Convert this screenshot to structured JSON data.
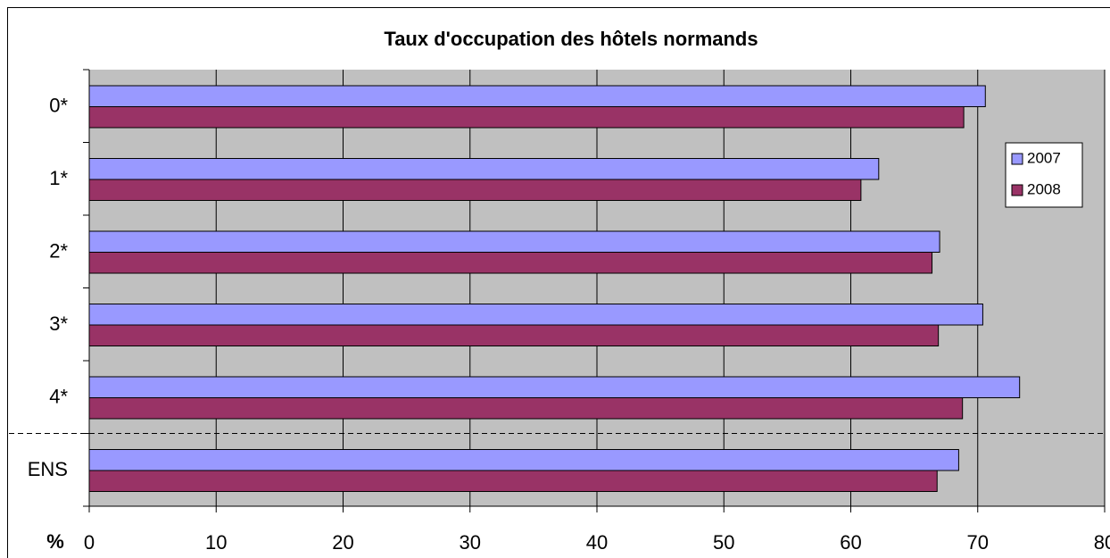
{
  "chart_data": {
    "type": "bar",
    "orientation": "horizontal",
    "title": "Taux d'occupation des hôtels normands",
    "categories": [
      "0*",
      "1*",
      "2*",
      "3*",
      "4*",
      "ENS"
    ],
    "series": [
      {
        "name": "2007",
        "color": "#9999ff",
        "values": [
          70.6,
          62.2,
          67.0,
          70.4,
          73.3,
          68.5
        ]
      },
      {
        "name": "2008",
        "color": "#993366",
        "values": [
          68.9,
          60.8,
          66.4,
          66.9,
          68.8,
          66.8
        ]
      }
    ],
    "x_label": "%",
    "xlim": [
      0,
      80
    ],
    "xticks": [
      0,
      10,
      20,
      30,
      40,
      50,
      60,
      70,
      80
    ],
    "grid": true,
    "legend": "right",
    "plot_background": "#c0c0c0"
  }
}
